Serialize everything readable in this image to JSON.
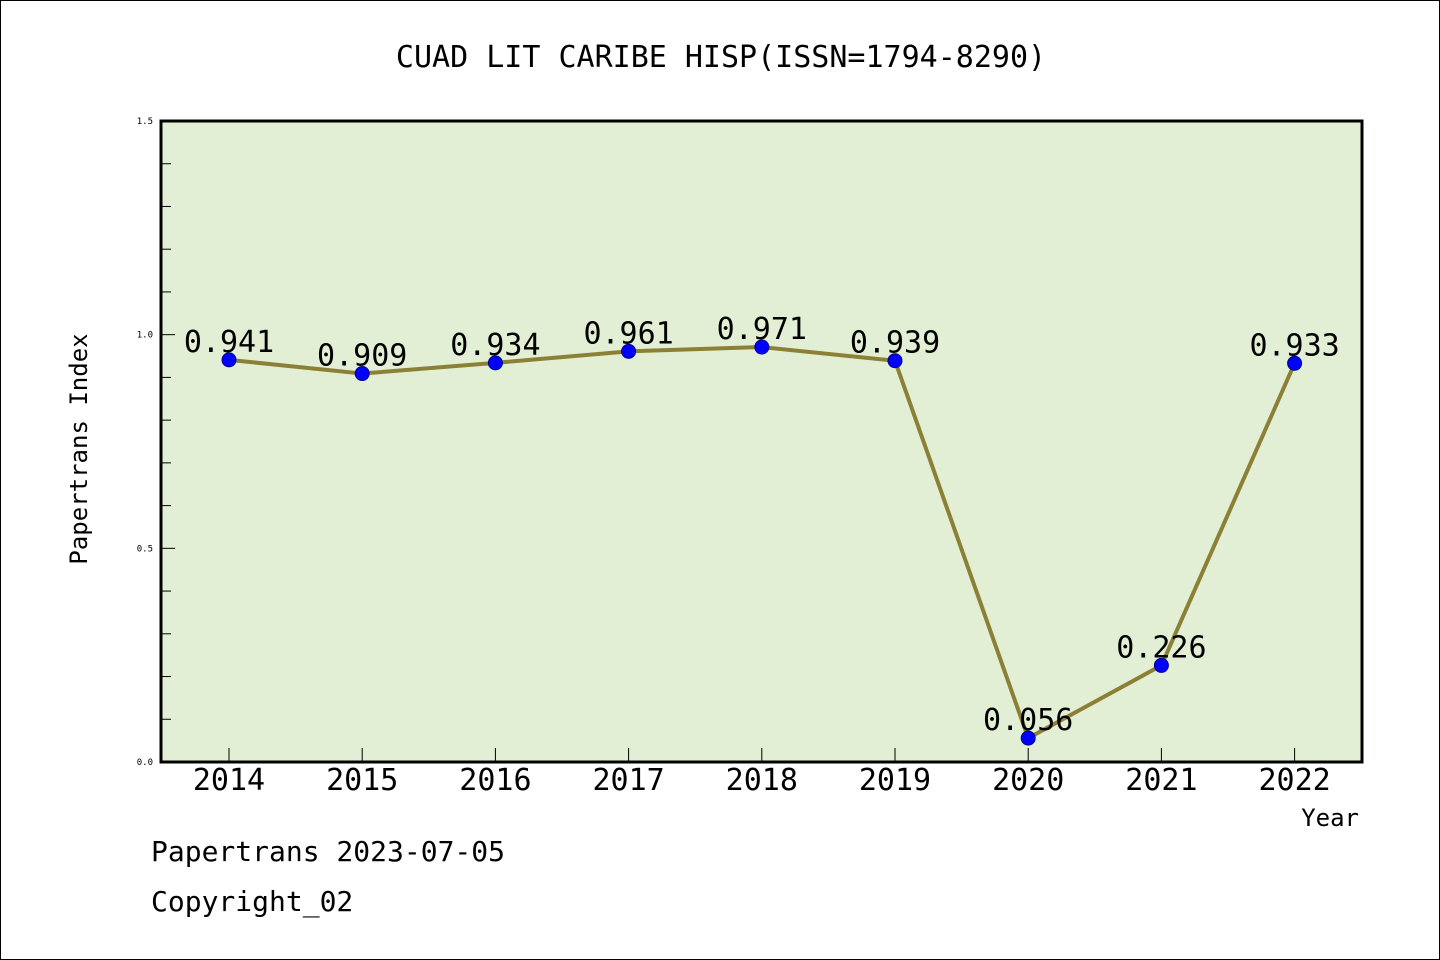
{
  "chart_data": {
    "type": "line",
    "title": "CUAD LIT CARIBE HISP(ISSN=1794-8290)",
    "xlabel": "Year",
    "ylabel": "Papertrans Index",
    "categories": [
      "2014",
      "2015",
      "2016",
      "2017",
      "2018",
      "2019",
      "2020",
      "2021",
      "2022"
    ],
    "values": [
      0.941,
      0.909,
      0.934,
      0.961,
      0.971,
      0.939,
      0.056,
      0.226,
      0.933
    ],
    "data_labels": [
      "0.941",
      "0.909",
      "0.934",
      "0.961",
      "0.971",
      "0.939",
      "0.056",
      "0.226",
      "0.933"
    ],
    "ylim": [
      0,
      1.5
    ],
    "yticks": [
      "0.0",
      "0.5",
      "1.0",
      "1.5"
    ],
    "grid": false,
    "legend": "none",
    "colors": {
      "plot_background": "#e2efd5",
      "line": "#8b8035",
      "marker": "#0000ff"
    }
  },
  "footer": {
    "date_line": "Papertrans 2023-07-05",
    "copyright": "Copyright_02"
  }
}
